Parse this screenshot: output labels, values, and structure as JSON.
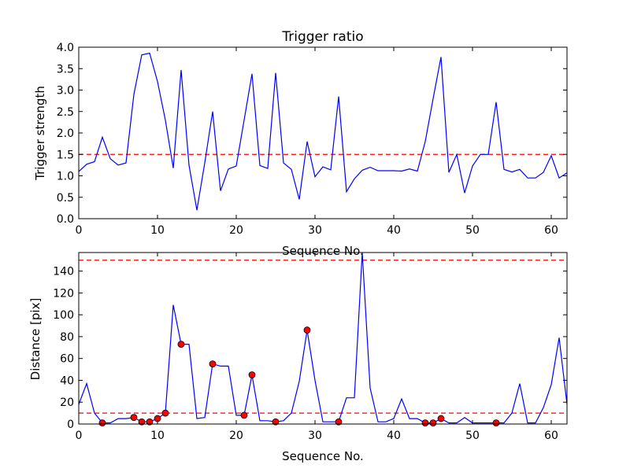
{
  "chart_data": [
    {
      "type": "line",
      "title": "Trigger ratio",
      "xlabel": "Sequence No.",
      "ylabel": "Trigger strength",
      "xlim": [
        0,
        62
      ],
      "ylim": [
        0,
        4.0
      ],
      "xticks": [
        "0",
        "10",
        "20",
        "30",
        "40",
        "50",
        "60"
      ],
      "yticks": [
        "0.0",
        "0.5",
        "1.0",
        "1.5",
        "2.0",
        "2.5",
        "3.0",
        "3.5",
        "4.0"
      ],
      "grid": false,
      "line_color": "#0000ff",
      "threshold_color": "#ff0000",
      "thresholds": [
        1.5
      ],
      "series": [
        {
          "x": [
            0,
            1,
            2,
            3,
            4,
            5,
            6,
            7,
            8,
            9,
            10,
            11,
            12,
            13,
            14,
            15,
            16,
            17,
            18,
            19,
            20,
            21,
            22,
            23,
            24,
            25,
            26,
            27,
            28,
            29,
            30,
            31,
            32,
            33,
            34,
            35,
            36,
            37,
            38,
            39,
            40,
            41,
            42,
            43,
            44,
            45,
            46,
            47,
            48,
            49,
            50,
            51,
            52,
            53,
            54,
            55,
            56,
            57,
            58,
            59,
            60,
            61,
            62
          ],
          "values": [
            1.1,
            1.27,
            1.33,
            1.9,
            1.4,
            1.25,
            1.3,
            2.9,
            3.82,
            3.86,
            3.2,
            2.3,
            1.18,
            3.47,
            1.25,
            0.2,
            1.3,
            2.5,
            0.65,
            1.16,
            1.23,
            2.3,
            3.38,
            1.24,
            1.17,
            3.4,
            1.3,
            1.15,
            0.45,
            1.8,
            0.98,
            1.21,
            1.14,
            2.85,
            0.63,
            0.93,
            1.13,
            1.2,
            1.12,
            1.12,
            1.12,
            1.11,
            1.16,
            1.11,
            1.8,
            2.8,
            3.77,
            1.08,
            1.5,
            0.6,
            1.23,
            1.5,
            1.5,
            2.72,
            1.15,
            1.09,
            1.15,
            0.95,
            0.95,
            1.08,
            1.47,
            0.95,
            1.07
          ]
        }
      ]
    },
    {
      "type": "line",
      "title": "",
      "xlabel": "Sequence No.",
      "ylabel": "Distance [pix]",
      "xlim": [
        0,
        62
      ],
      "ylim": [
        0,
        157
      ],
      "xticks": [
        "0",
        "10",
        "20",
        "30",
        "40",
        "50",
        "60"
      ],
      "yticks": [
        "0",
        "20",
        "40",
        "60",
        "80",
        "100",
        "120",
        "140"
      ],
      "grid": false,
      "line_color": "#0000ff",
      "threshold_color": "#ff0000",
      "marker_color": "#ff0000",
      "thresholds": [
        150,
        10
      ],
      "series": [
        {
          "x": [
            0,
            1,
            2,
            3,
            4,
            5,
            6,
            7,
            8,
            9,
            10,
            11,
            12,
            13,
            14,
            15,
            16,
            17,
            18,
            19,
            20,
            21,
            22,
            23,
            24,
            25,
            26,
            27,
            28,
            29,
            30,
            31,
            32,
            33,
            34,
            35,
            36,
            37,
            38,
            39,
            40,
            41,
            42,
            43,
            44,
            45,
            46,
            47,
            48,
            49,
            50,
            51,
            52,
            53,
            54,
            55,
            56,
            57,
            58,
            59,
            60,
            61,
            62
          ],
          "values": [
            18,
            37,
            10,
            1,
            1,
            5,
            5,
            6,
            2,
            2,
            5,
            10,
            109,
            73,
            73,
            5,
            6,
            55,
            53,
            53,
            8,
            8,
            45,
            3,
            3,
            2,
            3,
            10,
            39,
            86,
            40,
            2,
            2,
            2,
            24,
            24,
            157,
            33,
            2,
            2,
            5,
            23,
            5,
            5,
            1,
            1,
            5,
            1,
            1,
            6,
            1,
            1,
            1,
            1,
            1,
            10,
            37,
            1,
            1,
            15,
            36,
            79,
            18
          ]
        }
      ],
      "markers": {
        "x": [
          3,
          7,
          8,
          9,
          10,
          11,
          13,
          17,
          21,
          22,
          25,
          29,
          33,
          44,
          45,
          46,
          53
        ],
        "values": [
          1,
          6,
          2,
          2,
          5,
          10,
          73,
          55,
          8,
          45,
          2,
          86,
          2,
          1,
          1,
          5,
          1
        ]
      }
    }
  ]
}
